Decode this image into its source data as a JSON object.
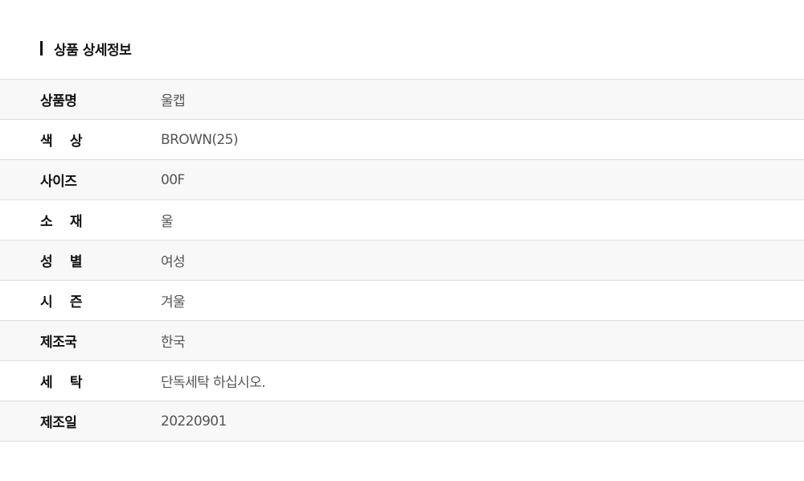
{
  "section_title": "상품 상세정보",
  "rows": [
    {
      "label": "상품명",
      "value": "울캡"
    },
    {
      "label": "색 상",
      "value": "BROWN(25)"
    },
    {
      "label": "사이즈",
      "value": "00F"
    },
    {
      "label": "소 재",
      "value": "울"
    },
    {
      "label": "성 별",
      "value": "여성"
    },
    {
      "label": "시 즌",
      "value": "겨울"
    },
    {
      "label": "제조국",
      "value": "한국"
    },
    {
      "label": "세 탁",
      "value": "단독세탁 하십시오."
    },
    {
      "label": "제조일",
      "value": "20220901"
    }
  ]
}
